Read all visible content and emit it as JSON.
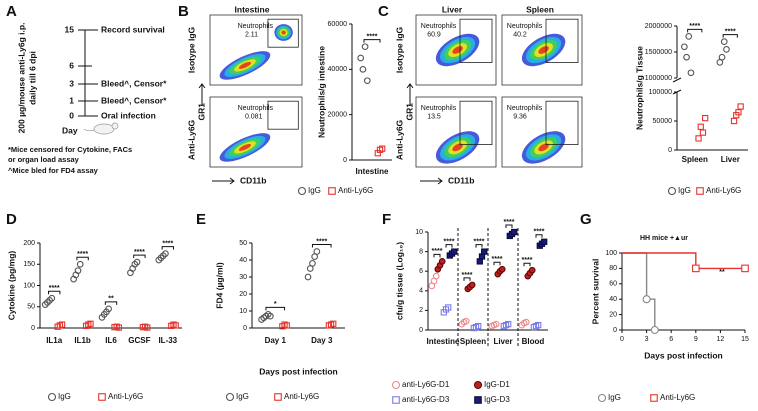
{
  "panel_labels": [
    "A",
    "B",
    "C",
    "D",
    "E",
    "F",
    "G"
  ],
  "timeline": {
    "dosing": [
      "200 µg/mouse anti-Ly6g i.p.",
      "daily till 6 dpi"
    ],
    "rows": [
      {
        "day": 15,
        "event": "Record survival"
      },
      {
        "day": 6
      },
      {
        "day": 3,
        "event": "Bleed^, Censor*"
      },
      {
        "day": 1,
        "event": "Bleed^, Censor*"
      },
      {
        "day": 0,
        "event": "Oral infection"
      }
    ],
    "axis_label": "Day",
    "notes": [
      "*Mice  censored for Cytokine, FACs",
      "or organ load assay",
      "^Mice bled for FD4 assay"
    ]
  },
  "flow_b": {
    "title": "Intestine",
    "rows": [
      "Isotype IgG",
      "Anti-Ly6G"
    ],
    "y_axis": "GR1",
    "x_axis": "CD11b",
    "gates": [
      {
        "label": "Neutrophils",
        "value": 2.11
      },
      {
        "label": "Neutrophils",
        "value": 0.081
      }
    ]
  },
  "flow_c": {
    "titles": [
      "Liver",
      "Spleen"
    ],
    "rows": [
      "Isotype IgG",
      "Anti-Ly6G"
    ],
    "y_axis": "GR1",
    "x_axis": "CD11b",
    "gates": [
      {
        "label": "Neutrophils",
        "value": 60.9
      },
      {
        "label": "Neutrophils",
        "value": 40.2
      },
      {
        "label": "Neutrophils",
        "value": 13.5
      },
      {
        "label": "Neutrophils",
        "value": 9.36
      }
    ]
  },
  "chart_data": [
    {
      "type": "dotplot",
      "ylabel": "Neutrophils/g intestine",
      "categories": [
        "Intestine"
      ],
      "ylim": [
        0,
        60000
      ],
      "yticks": [
        0,
        20000,
        40000,
        60000
      ],
      "significance": [
        [
          "****"
        ]
      ],
      "series": [
        {
          "name": "IgG",
          "color": "#555555",
          "marker": "circle",
          "filled": false,
          "values": [
            [
              45000,
              40000,
              50000,
              35000
            ]
          ]
        },
        {
          "name": "Anti-Ly6G",
          "color": "#e8322d",
          "marker": "square",
          "filled": false,
          "values": [
            [
              3000,
              4500,
              5000
            ]
          ]
        }
      ]
    },
    {
      "type": "dotplot",
      "ylabel": "Neutrophils/g Tissue",
      "categories": [
        "Spleen",
        "Liver"
      ],
      "upper_ylim": [
        1000000,
        2000000
      ],
      "upper_yticks": [
        1000000,
        1500000,
        2000000
      ],
      "ylim": [
        0,
        100000
      ],
      "yticks": [
        0,
        50000,
        100000
      ],
      "significance": [
        [
          "****"
        ],
        [
          "****"
        ]
      ],
      "series": [
        {
          "name": "IgG",
          "color": "#555555",
          "marker": "circle",
          "filled": false,
          "values": [
            [
              1600000,
              1400000,
              1800000,
              1100000
            ],
            [
              1300000,
              1400000,
              1700000,
              1550000
            ]
          ]
        },
        {
          "name": "Anti-Ly6G",
          "color": "#e8322d",
          "marker": "square",
          "filled": false,
          "values": [
            [
              20000,
              40000,
              30000,
              55000
            ],
            [
              50000,
              60000,
              65000,
              75000
            ]
          ]
        }
      ]
    },
    {
      "type": "dotplot",
      "ylabel": "Cytokine (pg/mg)",
      "categories": [
        "IL1a",
        "IL1b",
        "IL6",
        "GCSF",
        "IL-33"
      ],
      "ylim": [
        0,
        200
      ],
      "yticks": [
        0,
        50,
        100,
        150,
        200
      ],
      "significance": [
        [
          "****"
        ],
        [
          "****"
        ],
        [
          "**"
        ],
        [
          "****"
        ],
        [
          "****"
        ]
      ],
      "series": [
        {
          "name": "IgG",
          "color": "#555555",
          "marker": "circle",
          "filled": false,
          "values": [
            [
              55,
              60,
              65,
              70
            ],
            [
              115,
              125,
              135,
              150
            ],
            [
              25,
              32,
              38,
              45
            ],
            [
              130,
              140,
              150,
              155
            ],
            [
              160,
              165,
              170,
              175
            ]
          ]
        },
        {
          "name": "Anti-Ly6G",
          "color": "#e8322d",
          "marker": "square",
          "filled": false,
          "values": [
            [
              3,
              6,
              8
            ],
            [
              5,
              8,
              10
            ],
            [
              2,
              3,
              1
            ],
            [
              2,
              3,
              1
            ],
            [
              5,
              8,
              6
            ]
          ]
        }
      ]
    },
    {
      "type": "dotplot",
      "ylabel": "FD4 (µg/ml)",
      "xlabel": "Days post infection",
      "categories": [
        "Day 1",
        "Day 3"
      ],
      "ylim": [
        0,
        50
      ],
      "yticks": [
        0,
        10,
        20,
        30,
        40,
        50
      ],
      "significance": [
        [
          "*"
        ],
        [
          "****"
        ]
      ],
      "series": [
        {
          "name": "IgG",
          "color": "#555555",
          "marker": "circle",
          "filled": false,
          "values": [
            [
              5,
              6,
              7,
              8,
              7
            ],
            [
              30,
              35,
              38,
              42,
              45
            ]
          ]
        },
        {
          "name": "Anti-Ly6G",
          "color": "#e8322d",
          "marker": "square",
          "filled": false,
          "values": [
            [
              1,
              2,
              1.5
            ],
            [
              1.5,
              2,
              2.5
            ]
          ]
        }
      ]
    },
    {
      "type": "dotplot",
      "ylabel": "cfu/g tissue (Log₁₀)",
      "categories": [
        "Intestine",
        "Spleen",
        "Liver",
        "Blood"
      ],
      "ylim": [
        0,
        10
      ],
      "yticks": [
        0,
        2,
        4,
        6,
        8,
        10
      ],
      "significance": [
        [
          "****",
          "****"
        ],
        [
          "****",
          "****"
        ],
        [
          "****",
          "****"
        ],
        [
          "****",
          "****"
        ]
      ],
      "series": [
        {
          "name": "anti-Ly6G-D1",
          "color": "#f08a8a",
          "marker": "circle",
          "filled": false,
          "values": [
            [
              4.5,
              5,
              5.5
            ],
            [
              0.6,
              0.8,
              0.9
            ],
            [
              0.4,
              0.5,
              0.6
            ],
            [
              0.5,
              0.7,
              0.8
            ]
          ]
        },
        {
          "name": "IgG-D1",
          "color": "#c0201e",
          "edge": "#5a0a0a",
          "marker": "circle",
          "filled": true,
          "values": [
            [
              6.2,
              6.6,
              7
            ],
            [
              4.2,
              4.4,
              4.6
            ],
            [
              5.7,
              6,
              6.2
            ],
            [
              5.5,
              5.8,
              6.1
            ]
          ]
        },
        {
          "name": "anti-Ly6G-D3",
          "color": "#7b7bea",
          "marker": "square",
          "filled": false,
          "values": [
            [
              1.8,
              2.1,
              2.3
            ],
            [
              0.2,
              0.3,
              0.4
            ],
            [
              0.4,
              0.5,
              0.6
            ],
            [
              0.3,
              0.4,
              0.5
            ]
          ]
        },
        {
          "name": "IgG-D3",
          "color": "#1a1a7a",
          "edge": "#0a0a3a",
          "marker": "square",
          "filled": true,
          "values": [
            [
              7.6,
              7.8,
              8
            ],
            [
              7,
              7.5,
              8
            ],
            [
              9.6,
              9.8,
              10
            ],
            [
              8.6,
              8.8,
              9
            ]
          ]
        }
      ]
    },
    {
      "type": "line",
      "step": true,
      "ylabel": "Percent survival",
      "xlabel": "Days post infection",
      "annotation": "HH mice +▲ur",
      "significance": "**",
      "xlim": [
        0,
        15
      ],
      "xticks": [
        0,
        3,
        6,
        9,
        12,
        15
      ],
      "ylim": [
        0,
        100
      ],
      "yticks": [
        0,
        20,
        40,
        60,
        80,
        100
      ],
      "series": [
        {
          "name": "IgG",
          "color": "#888888",
          "marker": "circle",
          "filled": false,
          "x": [
            0,
            3,
            4
          ],
          "values": [
            100,
            40,
            0
          ]
        },
        {
          "name": "Anti-Ly6G",
          "color": "#e8322d",
          "marker": "square",
          "filled": false,
          "x": [
            0,
            9,
            15
          ],
          "values": [
            100,
            80,
            80
          ]
        }
      ]
    }
  ]
}
